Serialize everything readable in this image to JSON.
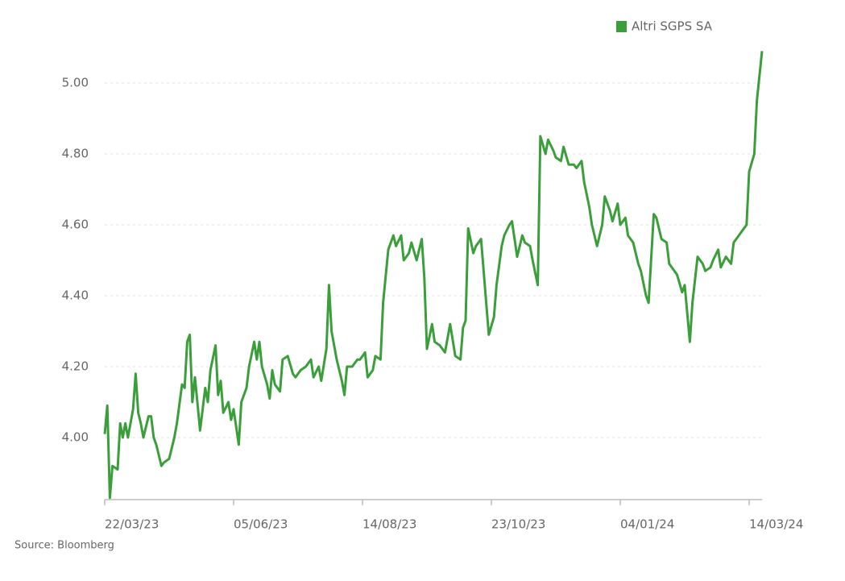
{
  "chart_data": {
    "type": "line",
    "source": "Source: Bloomberg",
    "x": [
      0,
      1,
      2,
      3,
      5,
      6,
      7,
      8,
      9,
      11,
      12,
      13,
      14,
      15,
      17,
      18,
      19,
      20,
      22,
      23,
      25,
      27,
      28,
      30,
      31,
      32,
      33,
      34,
      35,
      37,
      38,
      39,
      40,
      41,
      43,
      44,
      45,
      46,
      48,
      49,
      50,
      52,
      53,
      55,
      56,
      58,
      59,
      60,
      61,
      63,
      64,
      65,
      66,
      68,
      69,
      71,
      73,
      74,
      76,
      78,
      80,
      81,
      83,
      84,
      86,
      87,
      88,
      90,
      92,
      93,
      94,
      96,
      98,
      99,
      101,
      102,
      104,
      105,
      107,
      108,
      110,
      112,
      113,
      115,
      116,
      118,
      119,
      121,
      123,
      124,
      125,
      127,
      128,
      130,
      132,
      133,
      134,
      136,
      138,
      139,
      140,
      141,
      143,
      144,
      146,
      148,
      149,
      151,
      152,
      154,
      155,
      157,
      158,
      160,
      162,
      163,
      165,
      166,
      168,
      169,
      171,
      172,
      174,
      175,
      177,
      178,
      180,
      182,
      183,
      185,
      186,
      188,
      189,
      191,
      193,
      194,
      196,
      197,
      199,
      200,
      202,
      203,
      205,
      207,
      208,
      210,
      211,
      213,
      214,
      216,
      218,
      219,
      221,
      222,
      224,
      225,
      227,
      228,
      230,
      232,
      233,
      235,
      236,
      238,
      239,
      241,
      243,
      244,
      246,
      247,
      249,
      250,
      252,
      253,
      255
    ],
    "series": [
      {
        "name": "Altri SGPS SA",
        "color": "#3a9e3a",
        "values": [
          4.01,
          4.09,
          3.83,
          3.92,
          3.91,
          4.04,
          4.0,
          4.04,
          4.0,
          4.08,
          4.18,
          4.07,
          4.04,
          4.0,
          4.06,
          4.06,
          4.0,
          3.98,
          3.92,
          3.93,
          3.94,
          4.0,
          4.04,
          4.15,
          4.14,
          4.27,
          4.29,
          4.1,
          4.17,
          4.02,
          4.08,
          4.14,
          4.1,
          4.19,
          4.26,
          4.12,
          4.16,
          4.07,
          4.1,
          4.05,
          4.08,
          3.98,
          4.1,
          4.14,
          4.2,
          4.27,
          4.22,
          4.27,
          4.2,
          4.15,
          4.11,
          4.19,
          4.15,
          4.13,
          4.22,
          4.23,
          4.18,
          4.17,
          4.19,
          4.2,
          4.22,
          4.17,
          4.2,
          4.16,
          4.25,
          4.43,
          4.3,
          4.22,
          4.16,
          4.12,
          4.2,
          4.2,
          4.22,
          4.22,
          4.24,
          4.17,
          4.19,
          4.23,
          4.22,
          4.38,
          4.53,
          4.57,
          4.54,
          4.57,
          4.5,
          4.52,
          4.55,
          4.5,
          4.56,
          4.45,
          4.25,
          4.32,
          4.27,
          4.26,
          4.24,
          4.28,
          4.32,
          4.23,
          4.22,
          4.31,
          4.33,
          4.59,
          4.52,
          4.54,
          4.56,
          4.38,
          4.29,
          4.34,
          4.43,
          4.54,
          4.57,
          4.6,
          4.61,
          4.51,
          4.57,
          4.55,
          4.54,
          4.5,
          4.43,
          4.85,
          4.8,
          4.84,
          4.81,
          4.79,
          4.78,
          4.82,
          4.77,
          4.77,
          4.76,
          4.78,
          4.72,
          4.65,
          4.6,
          4.54,
          4.6,
          4.68,
          4.64,
          4.61,
          4.66,
          4.6,
          4.62,
          4.57,
          4.55,
          4.49,
          4.47,
          4.4,
          4.38,
          4.63,
          4.62,
          4.56,
          4.55,
          4.49,
          4.47,
          4.46,
          4.41,
          4.43,
          4.27,
          4.38,
          4.51,
          4.49,
          4.47,
          4.48,
          4.5,
          4.53,
          4.48,
          4.51,
          4.49,
          4.55,
          4.57,
          4.58,
          4.6,
          4.75,
          4.8,
          4.95,
          5.09
        ]
      }
    ],
    "xlim": [
      0,
      255
    ],
    "xticks": [
      {
        "value": 0,
        "label": "22/03/23"
      },
      {
        "value": 50,
        "label": "05/06/23"
      },
      {
        "value": 100,
        "label": "14/08/23"
      },
      {
        "value": 150,
        "label": "23/10/23"
      },
      {
        "value": 200,
        "label": "04/01/24"
      },
      {
        "value": 250,
        "label": "14/03/24"
      }
    ],
    "ylim": [
      3.825,
      5.084
    ],
    "yticks": [
      {
        "value": 4,
        "label": "4.00"
      },
      {
        "value": 4.2,
        "label": "4.20"
      },
      {
        "value": 4.4,
        "label": "4.40"
      },
      {
        "value": 4.6,
        "label": "4.60"
      },
      {
        "value": 4.8,
        "label": "4.80"
      },
      {
        "value": 5,
        "label": "5.00"
      }
    ],
    "grid": true,
    "legend": "top-right"
  }
}
